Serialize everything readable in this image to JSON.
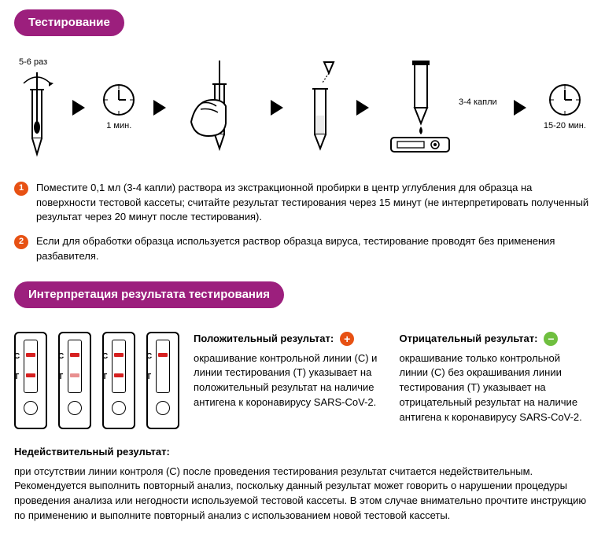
{
  "section1": {
    "badge": "Тестирование",
    "steps": {
      "swirl_label": "5-6 раз",
      "wait1_label": "1 мин.",
      "drops_label": "3-4 капли",
      "wait2_label": "15-20 мин."
    },
    "instructions": [
      "Поместите 0,1 мл (3-4 капли) раствора из экстракционной пробирки в центр углубления для образца на поверхности тестовой кассеты; считайте результат тестирования через 15 минут (не интерпретировать полученный результат через 20 минут после тестирования).",
      "Если для обработки образца используется раствор образца вируса, тестирование проводят без применения разбавителя."
    ]
  },
  "section2": {
    "badge": "Интерпретация результата тестирования",
    "cassettes": [
      {
        "c": true,
        "t": "strong"
      },
      {
        "c": true,
        "t": "faint"
      },
      {
        "c": true,
        "t": "strong"
      },
      {
        "c": true,
        "t": null
      }
    ],
    "positive": {
      "title": "Положительный результат:",
      "text": "окрашивание контрольной линии (C) и линии тестирования (T) указывает на положительный результат на наличие антигена к коронавирусу SARS-CoV-2."
    },
    "negative": {
      "title": "Отрицательный результат:",
      "text": "окрашивание только контрольной линии (C) без окрашивания линии тестирования (T) указывает на отрицательный результат на наличие антигена к коронавирусу SARS-CoV-2."
    },
    "invalid": {
      "title": "Недействительный результат:",
      "text": "при отсутствии линии контроля (C) после проведения тестирования результат считается недействительным. Рекомендуется выполнить повторный анализ, поскольку данный результат может говорить о нарушении процедуры проведения анализа или негодности используемой тестовой кассеты. В этом случае внимательно прочтите инструкцию по применению и выполните повторный анализ с использованием новой тестовой кассеты."
    }
  },
  "colors": {
    "badge_bg": "#9c1f7d",
    "badge_fg": "#ffffff",
    "number_bg": "#e75113",
    "line_red": "#d62020",
    "plus_bg": "#e75113",
    "minus_bg": "#6fbf3f"
  }
}
